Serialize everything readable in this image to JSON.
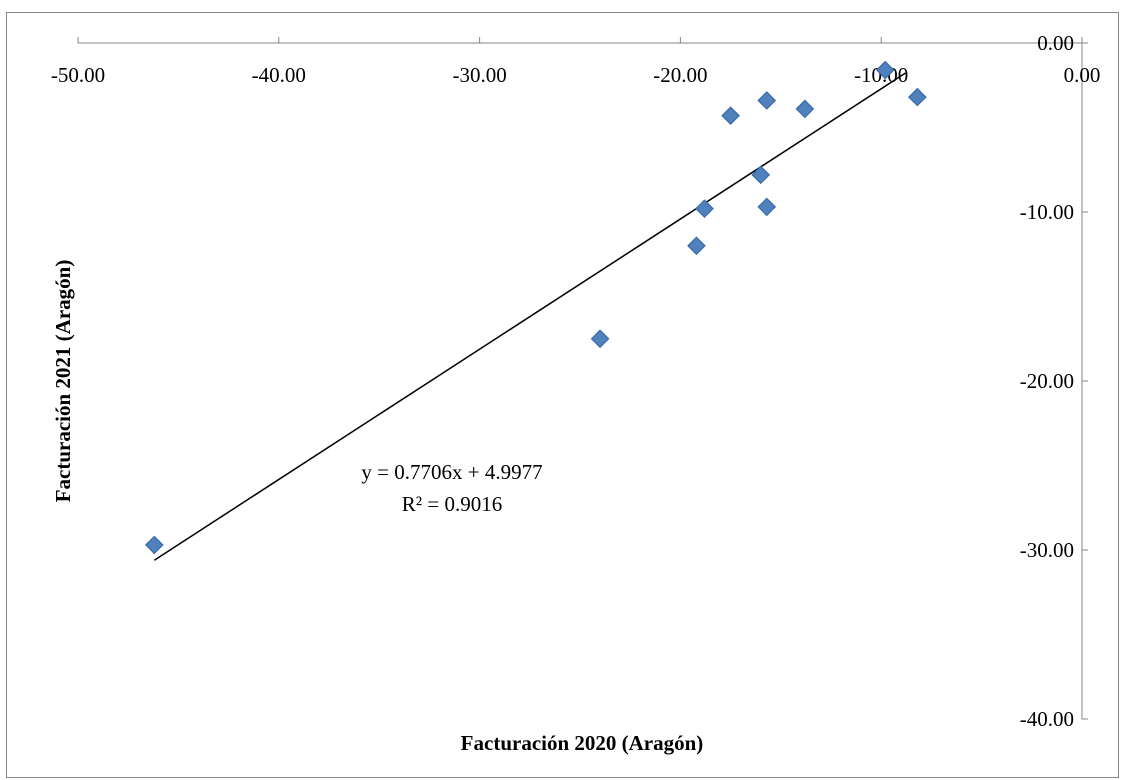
{
  "chart_data": {
    "type": "scatter",
    "xlabel": "Facturación 2020 (Aragón)",
    "ylabel": "Facturación 2021 (Aragón)",
    "xlim": [
      -50,
      0
    ],
    "ylim": [
      -40,
      0
    ],
    "x_ticks": [
      "-50.00",
      "-40.00",
      "-30.00",
      "-20.00",
      "-10.00",
      "0.00"
    ],
    "y_ticks": [
      "0.00",
      "-10.00",
      "-20.00",
      "-30.00",
      "-40.00"
    ],
    "grid": false,
    "series": [
      {
        "marker": "diamond",
        "color": "#4f81bd",
        "points": [
          {
            "x": -46.2,
            "y": -29.7
          },
          {
            "x": -24.0,
            "y": -17.5
          },
          {
            "x": -19.2,
            "y": -12.0
          },
          {
            "x": -18.8,
            "y": -9.8
          },
          {
            "x": -17.5,
            "y": -4.3
          },
          {
            "x": -16.0,
            "y": -7.8
          },
          {
            "x": -15.7,
            "y": -3.4
          },
          {
            "x": -15.7,
            "y": -9.7
          },
          {
            "x": -13.8,
            "y": -3.9
          },
          {
            "x": -9.8,
            "y": -1.6
          },
          {
            "x": -8.2,
            "y": -3.2
          }
        ]
      }
    ],
    "trendline": {
      "type": "linear",
      "slope": 0.7706,
      "intercept": 4.9977,
      "x_range": [
        -46.2,
        -8.8
      ],
      "equation": "y = 0.7706x + 4.9977",
      "r_squared": "R² = 0.9016",
      "color": "#000000"
    }
  }
}
